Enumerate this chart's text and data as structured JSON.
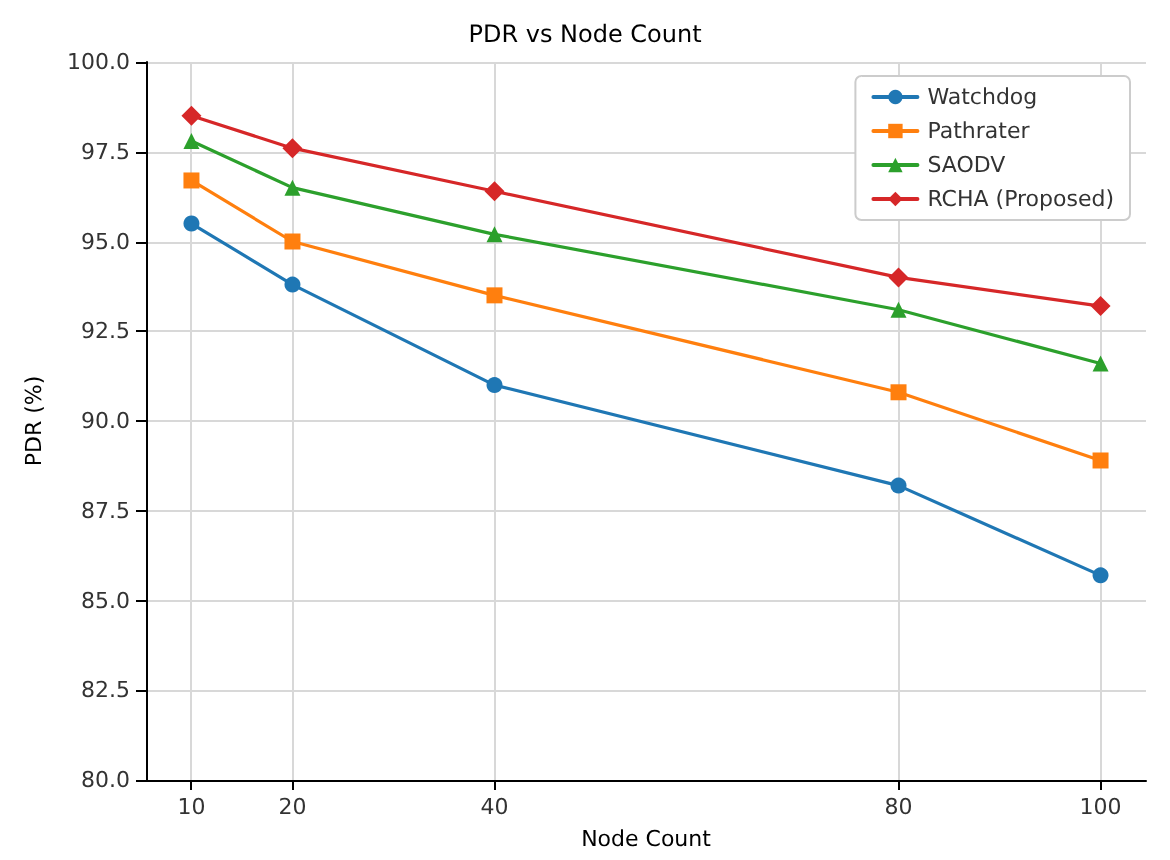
{
  "chart_data": {
    "type": "line",
    "title": "PDR vs Node Count",
    "xlabel": "Node Count",
    "ylabel": "PDR (%)",
    "x": [
      10,
      20,
      40,
      80,
      100
    ],
    "series": [
      {
        "name": "Watchdog",
        "color": "#1f77b4",
        "marker": "circle",
        "values": [
          95.5,
          93.8,
          91.0,
          88.2,
          85.7
        ]
      },
      {
        "name": "Pathrater",
        "color": "#ff7f0e",
        "marker": "square",
        "values": [
          96.7,
          95.0,
          93.5,
          90.8,
          88.9
        ]
      },
      {
        "name": "SAODV",
        "color": "#2ca02c",
        "marker": "triangle",
        "values": [
          97.8,
          96.5,
          95.2,
          93.1,
          91.6
        ]
      },
      {
        "name": "RCHA (Proposed)",
        "color": "#d62728",
        "marker": "diamond",
        "values": [
          98.5,
          97.6,
          96.4,
          94.0,
          93.2
        ]
      }
    ],
    "xlim": [
      5.5,
      104.5
    ],
    "xticks": [
      10,
      20,
      40,
      80,
      100
    ],
    "ylim": [
      80,
      100
    ],
    "yticks": [
      {
        "value": 80,
        "label": "80.0"
      },
      {
        "value": 82.5,
        "label": "82.5"
      },
      {
        "value": 85,
        "label": "85.0"
      },
      {
        "value": 87.5,
        "label": "87.5"
      },
      {
        "value": 90,
        "label": "90.0"
      },
      {
        "value": 92.5,
        "label": "92.5"
      },
      {
        "value": 95,
        "label": "95.0"
      },
      {
        "value": 97.5,
        "label": "97.5"
      },
      {
        "value": 100,
        "label": "100.0"
      }
    ],
    "grid": true,
    "legend": "top right",
    "line_style": "solid"
  }
}
